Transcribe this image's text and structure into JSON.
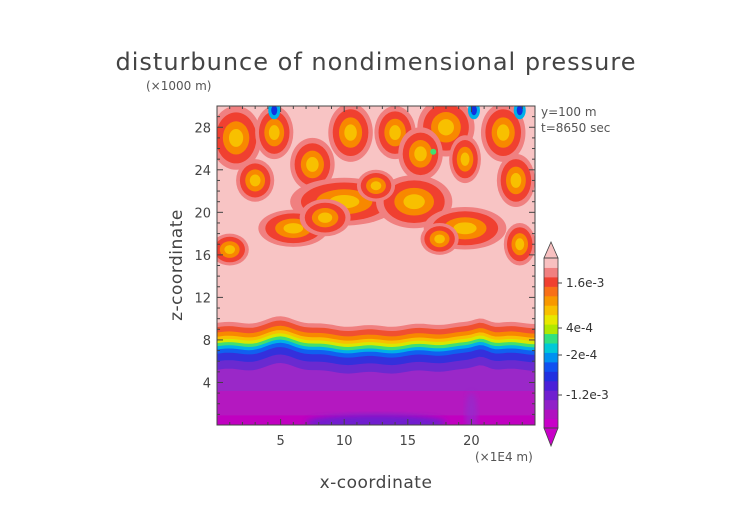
{
  "chart_data": {
    "type": "heatmap",
    "title": "disturbunce of nondimensional pressure",
    "xlabel": "x-coordinate",
    "ylabel": "z-coordinate",
    "x_unit": "(×1E4 m)",
    "y_unit": "(×1000 m)",
    "annotations": [
      "y=100 m",
      "t=8650 sec"
    ],
    "xlim": [
      0,
      25
    ],
    "ylim": [
      0,
      30
    ],
    "x_ticks": [
      5,
      10,
      15,
      20
    ],
    "x_tick_labels": [
      "5",
      "10",
      "15",
      "20"
    ],
    "y_ticks": [
      4,
      8,
      12,
      16,
      20,
      24,
      28
    ],
    "y_tick_labels": [
      "4",
      "8",
      "12",
      "16",
      "20",
      "24",
      "28"
    ],
    "colorbar": {
      "labels": [
        "1.6e-3",
        "4e-4",
        "-2e-4",
        "-1.2e-3"
      ],
      "colors": [
        "#c800c8",
        "#b010c0",
        "#9020c8",
        "#7020d0",
        "#4a20d8",
        "#2030e0",
        "#1050f0",
        "#0090f0",
        "#00c8d8",
        "#30e080",
        "#b0e800",
        "#e8e800",
        "#f8c000",
        "#f89800",
        "#f87018",
        "#f04030",
        "#f08080",
        "#f8c0c0"
      ]
    },
    "field_description": "Pressure disturbance (nondimensional) in the x-z plane; strongly negative in the lower layer (z < 7 km), sharp gradient near z ≈ 8–9 km, near-uniform positive between 10–16 km, and patchy positive cells above 16 km."
  }
}
